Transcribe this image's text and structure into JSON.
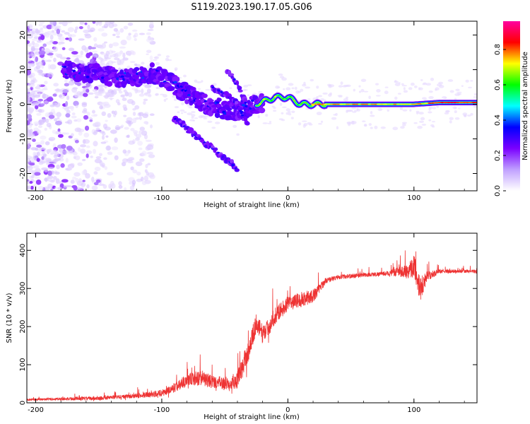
{
  "title": "S119.2023.190.17.05.G06",
  "chart_data": [
    {
      "type": "heatmap",
      "xlabel": "Height of straight line (km)",
      "ylabel": "Frequency (Hz)",
      "xlim": [
        -207,
        150
      ],
      "ylim": [
        -25,
        24
      ],
      "xticks": [
        -200,
        -100,
        0,
        100
      ],
      "yticks": [
        -20,
        -10,
        0,
        10,
        20
      ],
      "colorbar": {
        "label": "Normalized spectral amplitude",
        "range": [
          0,
          0.96
        ],
        "ticks": [
          "0.0",
          "0.2",
          "0.4",
          "0.6",
          "0.8"
        ],
        "tick_values": [
          0.0,
          0.2,
          0.4,
          0.6,
          0.8
        ],
        "colors": [
          "#ffffff",
          "#c0a0ff",
          "#7a00ff",
          "#0000ff",
          "#00ffff",
          "#00ff00",
          "#ffff00",
          "#ff0000",
          "#ff00a0"
        ]
      },
      "ridge": {
        "x": [
          -178,
          -160,
          -140,
          -120,
          -108,
          -95,
          -85,
          -75,
          -65,
          -55,
          -45,
          -38,
          -32,
          -25,
          -18,
          -10,
          0,
          10,
          20,
          40,
          60,
          80,
          100,
          120,
          150
        ],
        "y": [
          10,
          9,
          8,
          8,
          9,
          7,
          4,
          2,
          0,
          -1,
          -2,
          -2,
          -1,
          0,
          1,
          2,
          2,
          0,
          0,
          0,
          0,
          0,
          0,
          0.5,
          0.5
        ]
      },
      "branches": [
        {
          "x": [
            -60,
            -50,
            -40,
            -35,
            -32
          ],
          "y": [
            5,
            3,
            0,
            -4,
            -6
          ]
        },
        {
          "x": [
            -48,
            -42,
            -37,
            -33
          ],
          "y": [
            10,
            7,
            3,
            0
          ]
        },
        {
          "x": [
            -90,
            -70,
            -55,
            -45,
            -40
          ],
          "y": [
            -4,
            -10,
            -14,
            -17,
            -19
          ]
        }
      ]
    },
    {
      "type": "line",
      "xlabel": "Height of straight line (km)",
      "ylabel": "SNR (10 * v/v)",
      "xlim": [
        -207,
        150
      ],
      "ylim": [
        0,
        445
      ],
      "xticks": [
        -200,
        -100,
        0,
        100
      ],
      "yticks": [
        0,
        100,
        200,
        300,
        400
      ],
      "color": "#ee3333",
      "x": [
        -207,
        -180,
        -150,
        -120,
        -100,
        -90,
        -80,
        -70,
        -60,
        -50,
        -40,
        -35,
        -30,
        -25,
        -20,
        -15,
        -10,
        0,
        10,
        20,
        30,
        40,
        60,
        80,
        95,
        100,
        105,
        110,
        120,
        150
      ],
      "y": [
        8,
        10,
        12,
        18,
        25,
        40,
        60,
        65,
        55,
        50,
        60,
        100,
        150,
        210,
        180,
        200,
        230,
        260,
        270,
        280,
        320,
        330,
        335,
        340,
        345,
        360,
        300,
        330,
        345,
        345
      ],
      "amp": [
        5,
        8,
        10,
        12,
        18,
        25,
        35,
        40,
        35,
        35,
        45,
        60,
        60,
        50,
        50,
        45,
        45,
        40,
        40,
        35,
        15,
        12,
        12,
        12,
        40,
        60,
        70,
        30,
        10,
        10
      ]
    }
  ]
}
